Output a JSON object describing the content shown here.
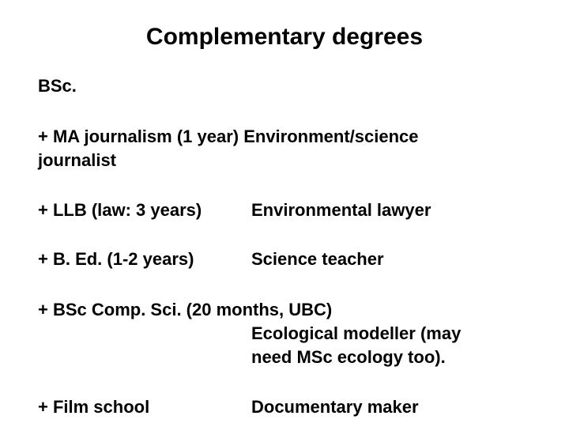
{
  "title": "Complementary degrees",
  "subtitle": "BSc.",
  "rows": [
    {
      "type": "wrap",
      "line1": "+ MA journalism (1 year) Environment/science",
      "line2": "journalist"
    },
    {
      "type": "two-col",
      "left": "+ LLB (law: 3 years)",
      "right": "Environmental lawyer"
    },
    {
      "type": "two-col",
      "left": "+ B. Ed. (1-2 years)",
      "right": "Science teacher"
    },
    {
      "type": "multi",
      "line1": "+ BSc Comp. Sci. (20 months, UBC)",
      "indent1": "Ecological modeller (may",
      "indent2": " need MSc ecology too)."
    },
    {
      "type": "two-col",
      "left": "+ Film school",
      "right": "Documentary maker"
    }
  ],
  "colors": {
    "background": "#ffffff",
    "text": "#000000"
  },
  "typography": {
    "title_fontsize": 30,
    "body_fontsize": 22,
    "font_weight": "bold",
    "font_family": "Arial"
  }
}
